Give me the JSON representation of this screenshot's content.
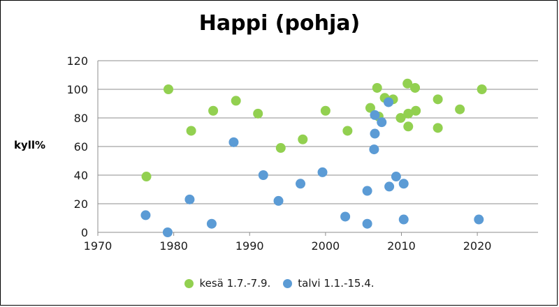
{
  "chart_data": {
    "type": "scatter",
    "title": "Happi (pohja)",
    "ylabel": "kyll%",
    "xlabel": "",
    "xlim": [
      1970,
      2028
    ],
    "ylim": [
      0,
      120
    ],
    "x_ticks": [
      1970,
      1980,
      1990,
      2000,
      2010,
      2020
    ],
    "y_ticks": [
      0,
      20,
      40,
      60,
      80,
      100,
      120
    ],
    "grid": "horizontal",
    "legend_position": "bottom",
    "series": [
      {
        "name": "kesä 1.7.-7.9.",
        "color": "#92d050",
        "points": [
          [
            1976.4,
            39
          ],
          [
            1979.3,
            100
          ],
          [
            1982.3,
            71
          ],
          [
            1985.2,
            85
          ],
          [
            1988.2,
            92
          ],
          [
            1991.1,
            83
          ],
          [
            1994.1,
            59
          ],
          [
            1997.0,
            65
          ],
          [
            2000.0,
            85
          ],
          [
            2002.9,
            71
          ],
          [
            2005.9,
            87
          ],
          [
            2006.8,
            101
          ],
          [
            2007.0,
            81
          ],
          [
            2007.8,
            94
          ],
          [
            2008.9,
            93
          ],
          [
            2009.9,
            80
          ],
          [
            2010.8,
            104
          ],
          [
            2010.9,
            74
          ],
          [
            2010.9,
            83
          ],
          [
            2011.8,
            101
          ],
          [
            2011.9,
            85
          ],
          [
            2014.8,
            93
          ],
          [
            2014.8,
            73
          ],
          [
            2017.7,
            86
          ],
          [
            2020.6,
            100
          ]
        ]
      },
      {
        "name": "talvi 1.1.-15.4.",
        "color": "#5b9bd5",
        "points": [
          [
            1976.3,
            12
          ],
          [
            1979.2,
            0
          ],
          [
            1982.1,
            23
          ],
          [
            1985.0,
            6
          ],
          [
            1987.9,
            63
          ],
          [
            1991.8,
            40
          ],
          [
            1993.8,
            22
          ],
          [
            1996.7,
            34
          ],
          [
            1999.6,
            42
          ],
          [
            2002.6,
            11
          ],
          [
            2005.5,
            29
          ],
          [
            2005.5,
            6
          ],
          [
            2006.5,
            82
          ],
          [
            2006.5,
            69
          ],
          [
            2006.4,
            58
          ],
          [
            2007.4,
            77
          ],
          [
            2008.3,
            91
          ],
          [
            2008.4,
            32
          ],
          [
            2009.3,
            39
          ],
          [
            2010.3,
            34
          ],
          [
            2010.3,
            9
          ],
          [
            2020.2,
            9
          ]
        ]
      }
    ]
  }
}
